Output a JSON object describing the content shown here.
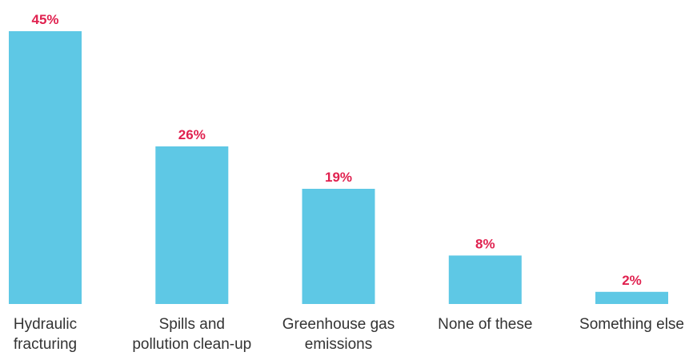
{
  "chart_data": {
    "type": "bar",
    "categories": [
      [
        "Hydraulic",
        "fracturing"
      ],
      [
        "Spills and",
        "pollution clean-up"
      ],
      [
        "Greenhouse gas",
        "emissions"
      ],
      [
        "None of these"
      ],
      [
        "Something else"
      ]
    ],
    "values": [
      45,
      26,
      19,
      8,
      2
    ],
    "value_labels": [
      "45%",
      "26%",
      "19%",
      "8%",
      "2%"
    ],
    "unit": "%",
    "ylim": [
      0,
      45
    ],
    "grid": false,
    "legend": "none",
    "colors": {
      "bar": "#5ec8e5",
      "value_label": "#e0214f",
      "category_label": "#333333"
    }
  }
}
